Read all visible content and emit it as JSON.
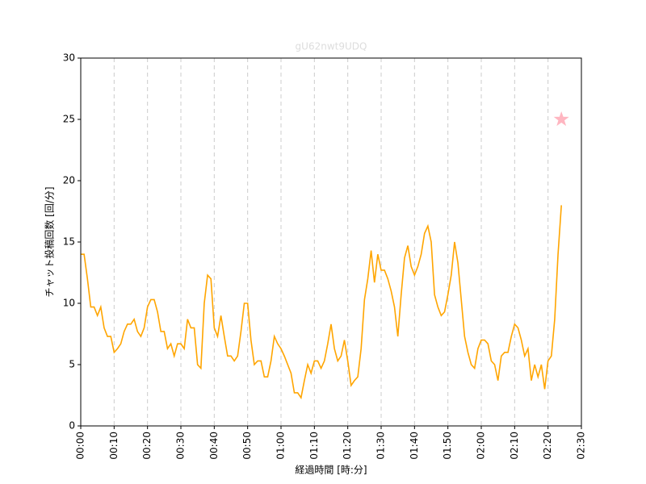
{
  "chart_data": {
    "type": "line",
    "title": "gU62nwt9UDQ",
    "xlabel": "経過時間 [時:分]",
    "ylabel": "チャット投稿回数 [回/分]",
    "x": [
      0,
      1,
      2,
      3,
      4,
      5,
      6,
      7,
      8,
      9,
      10,
      11,
      12,
      13,
      14,
      15,
      16,
      17,
      18,
      19,
      20,
      21,
      22,
      23,
      24,
      25,
      26,
      27,
      28,
      29,
      30,
      31,
      32,
      33,
      34,
      35,
      36,
      37,
      38,
      39,
      40,
      41,
      42,
      43,
      44,
      45,
      46,
      47,
      48,
      49,
      50,
      51,
      52,
      53,
      54,
      55,
      56,
      57,
      58,
      59,
      60,
      61,
      62,
      63,
      64,
      65,
      66,
      67,
      68,
      69,
      70,
      71,
      72,
      73,
      74,
      75,
      76,
      77,
      78,
      79,
      80,
      81,
      82,
      83,
      84,
      85,
      86,
      87,
      88,
      89,
      90,
      91,
      92,
      93,
      94,
      95,
      96,
      97,
      98,
      99,
      100,
      101,
      102,
      103,
      104,
      105,
      106,
      107,
      108,
      109,
      110,
      111,
      112,
      113,
      114,
      115,
      116,
      117,
      118,
      119,
      120,
      121,
      122,
      123,
      124,
      125,
      126,
      127,
      128,
      129,
      130,
      131,
      132,
      133,
      134,
      135,
      136,
      137,
      138,
      139,
      140,
      141,
      142,
      143,
      144
    ],
    "series": [
      {
        "color": "#ffa500",
        "values": [
          14,
          14,
          12,
          9.7,
          9.7,
          9,
          9.7,
          8,
          7.3,
          7.3,
          6,
          6.3,
          6.7,
          7.7,
          8.3,
          8.3,
          8.7,
          7.7,
          7.3,
          8,
          9.7,
          10.3,
          10.3,
          9.3,
          7.7,
          7.7,
          6.3,
          6.7,
          5.7,
          6.7,
          6.7,
          6.3,
          8.7,
          8,
          8,
          5,
          4.7,
          10,
          12.3,
          12,
          8,
          7.3,
          9,
          7.3,
          5.7,
          5.7,
          5.3,
          5.7,
          7.7,
          10,
          10,
          7,
          5,
          5.3,
          5.3,
          4,
          4,
          5.3,
          7.3,
          6.7,
          6.3,
          5.7,
          5,
          4.3,
          2.7,
          2.7,
          2.3,
          3.7,
          5,
          4.3,
          5.3,
          5.3,
          4.7,
          5.3,
          6.7,
          8.3,
          6.3,
          5.3,
          5.7,
          7,
          5.3,
          3.3,
          3.7,
          4,
          6.3,
          10.3,
          12,
          14.3,
          11.7,
          14,
          12.7,
          12.7,
          12,
          11,
          9.7,
          7.3,
          10.7,
          13.7,
          14.7,
          13,
          12.3,
          13,
          14,
          15.7,
          16.3,
          15,
          10.7,
          9.7,
          9,
          9.3,
          10.7,
          12.3,
          15,
          13.3,
          10.3,
          7.3,
          6,
          5,
          4.7,
          6.3,
          7,
          7,
          6.7,
          5.3,
          5,
          3.7,
          5.7,
          6,
          6,
          7.3,
          8.3,
          8,
          7,
          5.7,
          6.3,
          3.7,
          5,
          4,
          5,
          3,
          5.3,
          5.7,
          8.7,
          14,
          18
        ]
      }
    ],
    "star": {
      "x": 144,
      "y": 25,
      "color": "#ffb6c1"
    },
    "xlim": [
      0,
      150
    ],
    "xticks": [
      {
        "value": 0,
        "label": "00:00"
      },
      {
        "value": 10,
        "label": "00:10"
      },
      {
        "value": 20,
        "label": "00:20"
      },
      {
        "value": 30,
        "label": "00:30"
      },
      {
        "value": 40,
        "label": "00:40"
      },
      {
        "value": 50,
        "label": "00:50"
      },
      {
        "value": 60,
        "label": "01:00"
      },
      {
        "value": 70,
        "label": "01:10"
      },
      {
        "value": 80,
        "label": "01:20"
      },
      {
        "value": 90,
        "label": "01:30"
      },
      {
        "value": 100,
        "label": "01:40"
      },
      {
        "value": 110,
        "label": "01:50"
      },
      {
        "value": 120,
        "label": "02:00"
      },
      {
        "value": 130,
        "label": "02:10"
      },
      {
        "value": 140,
        "label": "02:20"
      },
      {
        "value": 150,
        "label": "02:30"
      }
    ],
    "ylim": [
      0,
      30
    ],
    "yticks": [
      0,
      5,
      10,
      15,
      20,
      25,
      30
    ],
    "grid": "x"
  }
}
